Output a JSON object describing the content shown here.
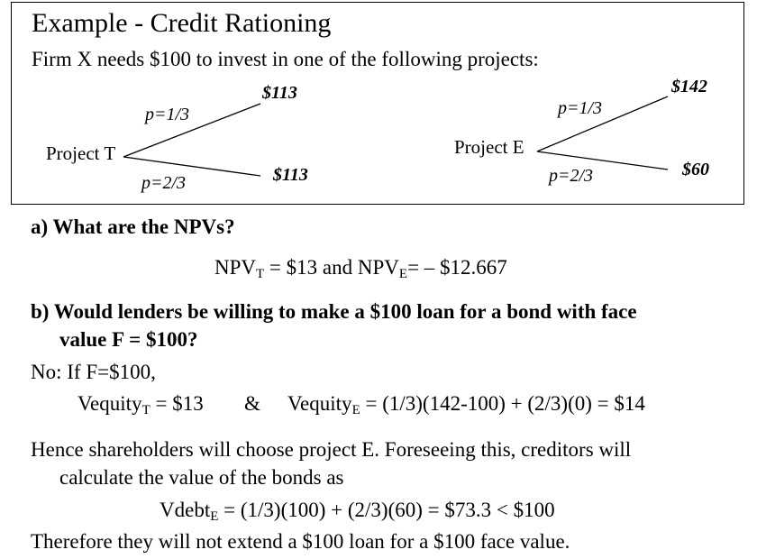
{
  "header": {
    "title": "Example - Credit Rationing",
    "intro": "Firm X needs $100 to invest in one of the following projects:"
  },
  "project_t": {
    "label": "Project T",
    "upper_prob": "p=1/3",
    "upper_payoff": "$113",
    "lower_prob": "p=2/3",
    "lower_payoff": "$113"
  },
  "project_e": {
    "label": "Project E",
    "upper_prob": "p=1/3",
    "upper_payoff": "$142",
    "lower_prob": "p=2/3",
    "lower_payoff": "$60"
  },
  "part_a": {
    "question": "a) What are the NPVs?",
    "npv_prefix": "NPV",
    "npv_t_sub": "T",
    "npv_t_value": " = $13 and NPV",
    "npv_e_sub": "E",
    "npv_e_value": "= – $12.667"
  },
  "part_b": {
    "question_line1": "b) Would lenders be willing to make a $100 loan for a bond with face",
    "question_line2": "value F = $100?",
    "answer_intro": "No: If F=$100,",
    "veq_t_prefix": "Vequity",
    "veq_t_sub": "T",
    "veq_t_value": " = $13",
    "amp": "&",
    "veq_e_prefix": "Vequity",
    "veq_e_sub": "E",
    "veq_e_value": " = (1/3)(142-100) + (2/3)(0) = $14",
    "hence_line1": "Hence shareholders will choose project E. Foreseeing this, creditors will",
    "hence_line2": "calculate the value of the bonds as",
    "vdebt_prefix": "Vdebt",
    "vdebt_sub": "E",
    "vdebt_value": " = (1/3)(100) + (2/3)(60) = $73.3 < $100",
    "conclusion": "Therefore they will not extend a $100 loan for a $100 face value."
  }
}
